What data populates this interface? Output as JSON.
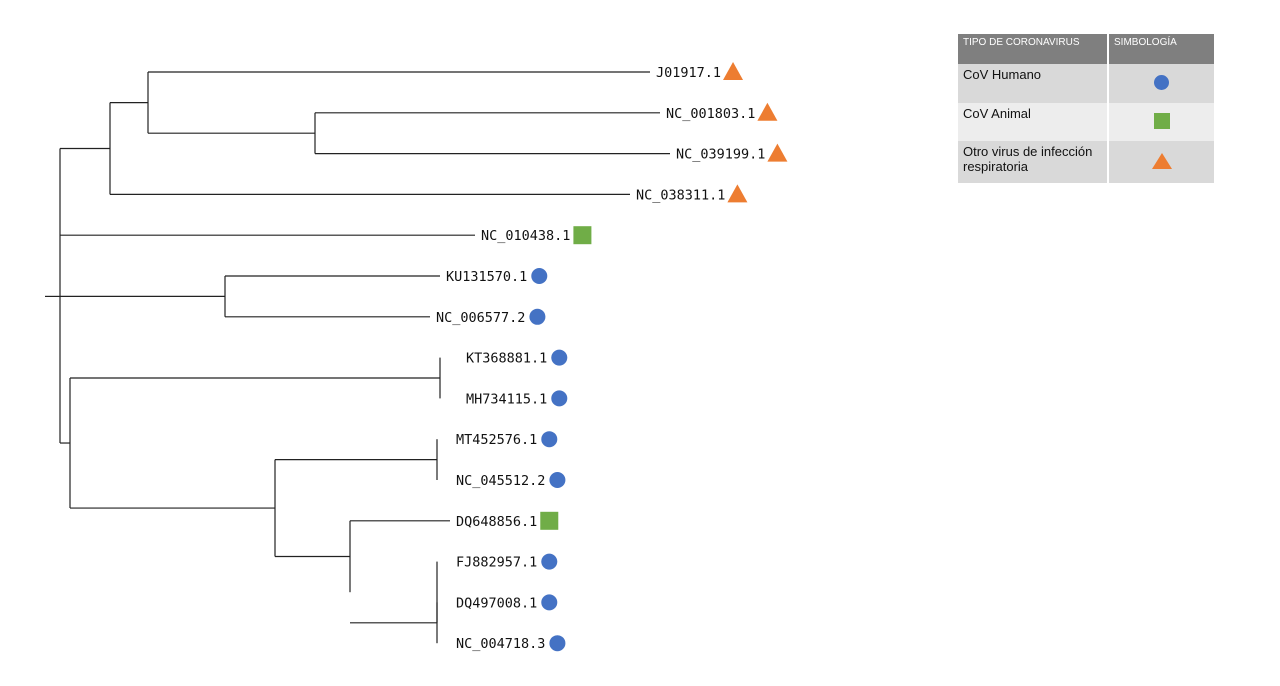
{
  "tree": {
    "leaves": [
      {
        "id": "J01917.1",
        "symbol": "triangle"
      },
      {
        "id": "NC_001803.1",
        "symbol": "triangle"
      },
      {
        "id": "NC_039199.1",
        "symbol": "triangle"
      },
      {
        "id": "NC_038311.1",
        "symbol": "triangle"
      },
      {
        "id": "NC_010438.1",
        "symbol": "square"
      },
      {
        "id": "KU131570.1",
        "symbol": "circle"
      },
      {
        "id": "NC_006577.2",
        "symbol": "circle"
      },
      {
        "id": "KT368881.1",
        "symbol": "circle"
      },
      {
        "id": "MH734115.1",
        "symbol": "circle"
      },
      {
        "id": "MT452576.1",
        "symbol": "circle"
      },
      {
        "id": "NC_045512.2",
        "symbol": "circle"
      },
      {
        "id": "DQ648856.1",
        "symbol": "square"
      },
      {
        "id": "FJ882957.1",
        "symbol": "circle"
      },
      {
        "id": "DQ497008.1",
        "symbol": "circle"
      },
      {
        "id": "NC_004718.3",
        "symbol": "circle"
      }
    ]
  },
  "legend": {
    "headers": {
      "type": "TIPO DE CORONAVIRUS",
      "symbol": "SIMBOLOGÍA"
    },
    "rows": [
      {
        "label": "CoV Humano",
        "symbol": "circle"
      },
      {
        "label": "CoV Animal",
        "symbol": "square"
      },
      {
        "label": "Otro virus de infección respiratoria",
        "symbol": "triangle"
      }
    ]
  },
  "colors": {
    "circle": "#4472c4",
    "square": "#70ad47",
    "triangle": "#ed7d31"
  }
}
